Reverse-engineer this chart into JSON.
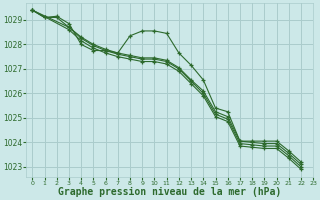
{
  "background_color": "#cce8e8",
  "grid_color": "#aacccc",
  "line_color": "#2d6a2d",
  "xlabel": "Graphe pression niveau de la mer (hPa)",
  "xlabel_fontsize": 7,
  "ylim": [
    1022.6,
    1029.7
  ],
  "xlim": [
    -0.5,
    23
  ],
  "yticks": [
    1023,
    1024,
    1025,
    1026,
    1027,
    1028,
    1029
  ],
  "xticks": [
    0,
    1,
    2,
    3,
    4,
    5,
    6,
    7,
    8,
    9,
    10,
    11,
    12,
    13,
    14,
    15,
    16,
    17,
    18,
    19,
    20,
    21,
    22,
    23
  ],
  "series": [
    {
      "x": [
        0,
        1,
        2,
        3,
        4,
        5,
        6,
        7,
        8,
        9,
        10,
        11,
        12,
        13,
        14,
        15,
        16,
        17,
        18,
        19,
        20,
        21,
        22
      ],
      "y": [
        1029.4,
        1029.1,
        1029.15,
        1028.85,
        1028.0,
        1027.75,
        1027.75,
        1027.65,
        1028.35,
        1028.55,
        1028.55,
        1028.45,
        1027.65,
        1027.15,
        1026.55,
        1025.4,
        1025.25,
        1024.05,
        1024.05,
        1024.05,
        1024.05,
        1023.65,
        1023.2
      ]
    },
    {
      "x": [
        0,
        1,
        2,
        3,
        4,
        5,
        6,
        7,
        8,
        9,
        10,
        11,
        12,
        13,
        14,
        15,
        16,
        17,
        18,
        19,
        20,
        21,
        22
      ],
      "y": [
        1029.4,
        1029.1,
        1029.1,
        1028.7,
        1028.3,
        1028.0,
        1027.8,
        1027.65,
        1027.55,
        1027.45,
        1027.45,
        1027.35,
        1027.05,
        1026.55,
        1026.1,
        1025.25,
        1025.05,
        1024.05,
        1024.0,
        1023.95,
        1023.95,
        1023.55,
        1023.1
      ]
    },
    {
      "x": [
        0,
        3,
        4,
        5,
        6,
        7,
        8,
        9,
        10,
        11,
        12,
        13,
        14,
        15,
        16,
        17,
        18,
        19,
        20,
        21,
        22
      ],
      "y": [
        1029.4,
        1028.7,
        1028.25,
        1027.95,
        1027.75,
        1027.6,
        1027.5,
        1027.4,
        1027.4,
        1027.3,
        1027.0,
        1026.5,
        1026.0,
        1025.15,
        1024.95,
        1023.95,
        1023.9,
        1023.85,
        1023.85,
        1023.45,
        1023.0
      ]
    },
    {
      "x": [
        0,
        3,
        4,
        5,
        6,
        7,
        8,
        9,
        10,
        11,
        12,
        13,
        14,
        15,
        16,
        17,
        18,
        19,
        20,
        21,
        22
      ],
      "y": [
        1029.4,
        1028.6,
        1028.15,
        1027.85,
        1027.65,
        1027.5,
        1027.4,
        1027.3,
        1027.3,
        1027.2,
        1026.9,
        1026.4,
        1025.9,
        1025.05,
        1024.85,
        1023.85,
        1023.8,
        1023.75,
        1023.75,
        1023.35,
        1022.9
      ]
    }
  ]
}
